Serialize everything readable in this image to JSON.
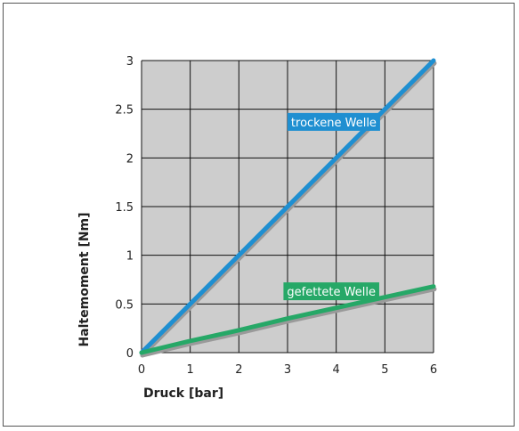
{
  "chart_data": {
    "type": "line",
    "title": "",
    "xlabel": "Druck [bar]",
    "ylabel": "Haltemoment [Nm]",
    "xlim": [
      0,
      6
    ],
    "ylim": [
      0,
      3
    ],
    "x_ticks": [
      "0",
      "1",
      "2",
      "3",
      "4",
      "5",
      "6"
    ],
    "y_ticks": [
      "0",
      "0.5",
      "1",
      "1.5",
      "2",
      "2.5",
      "3"
    ],
    "grid": true,
    "plot_background": "#cdcdcd",
    "grid_color": "#111111",
    "series": [
      {
        "name": "trockene Welle",
        "color": "#1f8fd1",
        "label_background": "#1f8fd1",
        "x": [
          0,
          6
        ],
        "y": [
          0,
          3
        ]
      },
      {
        "name": "gefettete Welle",
        "color": "#26a867",
        "label_background": "#26a867",
        "x": [
          0,
          1,
          2,
          3,
          4,
          5,
          6
        ],
        "y": [
          0,
          0.12,
          0.23,
          0.35,
          0.46,
          0.57,
          0.68
        ]
      }
    ]
  }
}
